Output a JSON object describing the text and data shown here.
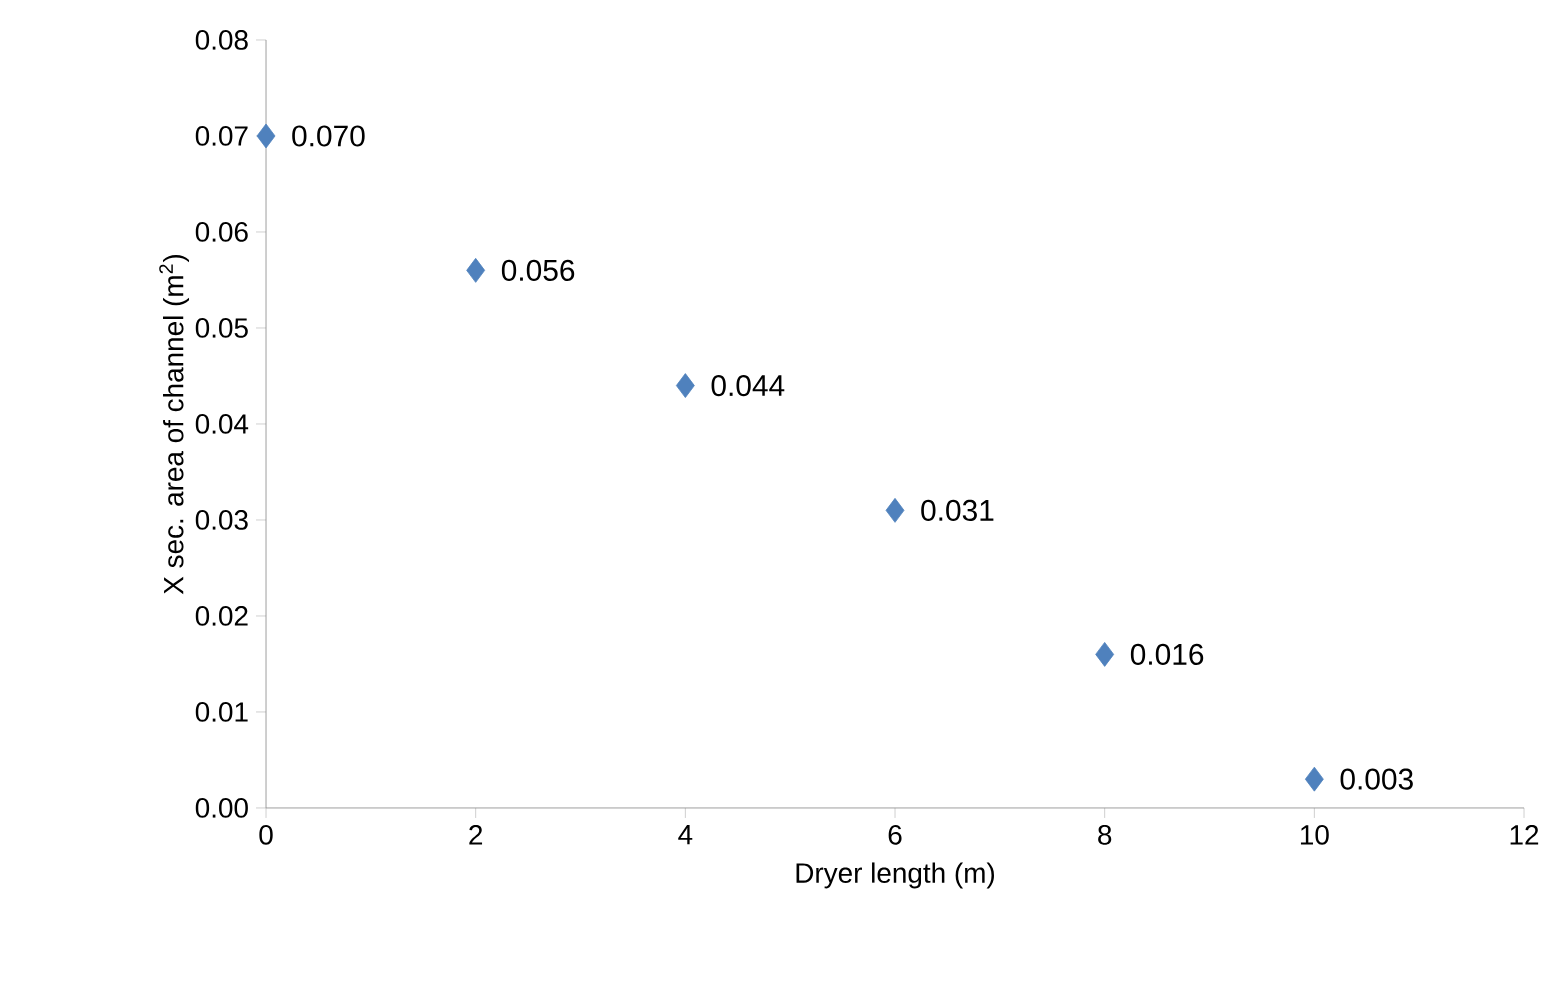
{
  "chart_data": {
    "type": "scatter",
    "xlabel": "Dryer length (m)",
    "ylabel": "X sec. area of channel (m$^{2}$)",
    "x": [
      0,
      2,
      4,
      6,
      8,
      10
    ],
    "values": [
      0.07,
      0.056,
      0.044,
      0.031,
      0.016,
      0.003
    ],
    "value_labels": [
      "0.070",
      "0.056",
      "0.044",
      "0.031",
      "0.016",
      "0.003"
    ],
    "color": "#4f81bd",
    "marker": "diamond",
    "xlim": [
      0,
      12
    ],
    "ylim": [
      0,
      0.08
    ],
    "xticks": [
      0,
      2,
      4,
      6,
      8,
      10,
      12
    ],
    "yticks": [
      {
        "value": 0,
        "label": "0.00"
      },
      {
        "value": 0.01,
        "label": "0.01"
      },
      {
        "value": 0.02,
        "label": "0.02"
      },
      {
        "value": 0.03,
        "label": "0.03"
      },
      {
        "value": 0.04,
        "label": "0.04"
      },
      {
        "value": 0.05,
        "label": "0.05"
      },
      {
        "value": 0.06,
        "label": "0.06"
      },
      {
        "value": 0.07,
        "label": "0.07"
      },
      {
        "value": 0.08,
        "label": "0.08"
      }
    ]
  }
}
